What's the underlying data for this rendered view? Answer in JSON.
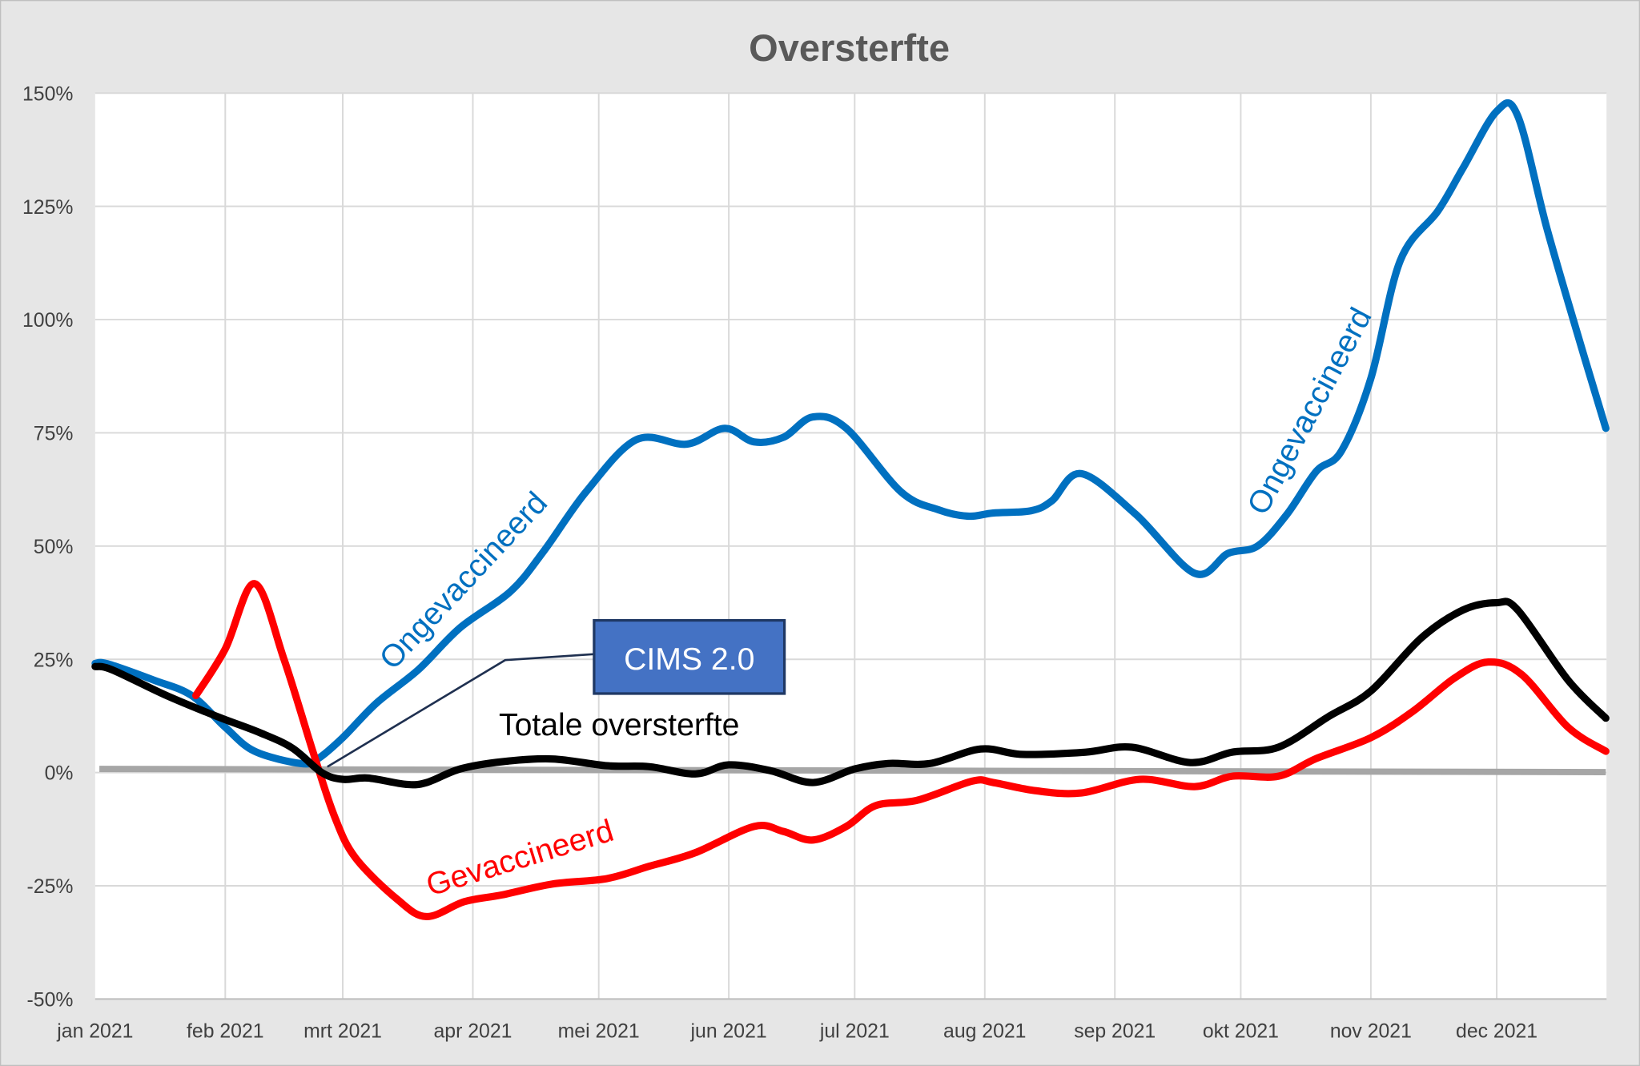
{
  "chart_data": {
    "type": "line",
    "title": "Oversterfte",
    "xlabel": "",
    "ylabel": "",
    "ylim": [
      -50,
      150
    ],
    "xlim": [
      "2021-01-01",
      "2021-12-27"
    ],
    "y_ticks": [
      "150%",
      "125%",
      "100%",
      "75%",
      "50%",
      "25%",
      "0%",
      "-25%",
      "-50%"
    ],
    "y_tick_values": [
      150,
      125,
      100,
      75,
      50,
      25,
      0,
      -25,
      -50
    ],
    "x_ticks": [
      "jan 2021",
      "feb 2021",
      "mrt 2021",
      "apr 2021",
      "mei 2021",
      "jun 2021",
      "jul 2021",
      "aug 2021",
      "sep 2021",
      "okt 2021",
      "nov 2021",
      "dec 2021"
    ],
    "x_tick_dates": [
      "2021-01-01",
      "2021-02-01",
      "2021-03-01",
      "2021-04-01",
      "2021-05-01",
      "2021-06-01",
      "2021-07-01",
      "2021-08-01",
      "2021-09-01",
      "2021-10-01",
      "2021-11-01",
      "2021-12-01"
    ],
    "grid": true,
    "legend": "none",
    "series": [
      {
        "name": "Ongevaccineerd",
        "color": "#0070c0",
        "x": [
          "2021-01-01",
          "2021-01-04",
          "2021-01-15",
          "2021-01-24",
          "2021-02-01",
          "2021-02-08",
          "2021-02-19",
          "2021-02-23",
          "2021-03-01",
          "2021-03-09",
          "2021-03-19",
          "2021-03-29",
          "2021-04-10",
          "2021-04-18",
          "2021-04-28",
          "2021-05-10",
          "2021-05-22",
          "2021-05-31",
          "2021-06-07",
          "2021-06-14",
          "2021-06-21",
          "2021-06-29",
          "2021-07-12",
          "2021-07-21",
          "2021-07-28",
          "2021-08-03",
          "2021-08-12",
          "2021-08-17",
          "2021-08-24",
          "2021-09-06",
          "2021-09-20",
          "2021-09-28",
          "2021-10-05",
          "2021-10-12",
          "2021-10-19",
          "2021-10-25",
          "2021-11-01",
          "2021-11-08",
          "2021-11-17",
          "2021-11-23",
          "2021-12-01",
          "2021-12-06",
          "2021-12-13",
          "2021-12-21",
          "2021-12-27"
        ],
        "y": [
          24.1,
          24,
          20.4,
          17,
          10,
          4.7,
          2,
          3,
          7.7,
          15.3,
          22.7,
          32,
          40,
          49,
          62,
          73.5,
          72.5,
          76,
          73,
          74,
          78.5,
          76,
          62,
          58,
          56.6,
          57.3,
          57.8,
          60,
          66,
          57,
          44,
          48.4,
          50,
          57,
          66.5,
          71,
          87,
          113,
          124,
          133.5,
          146,
          145,
          120,
          94.5,
          76
        ]
      },
      {
        "name": "Totale oversterfte",
        "color": "#000000",
        "x": [
          "2021-01-01",
          "2021-01-05",
          "2021-01-18",
          "2021-01-30",
          "2021-02-09",
          "2021-02-17",
          "2021-02-24",
          "2021-03-01",
          "2021-03-07",
          "2021-03-16",
          "2021-03-21",
          "2021-03-29",
          "2021-04-08",
          "2021-04-20",
          "2021-05-03",
          "2021-05-13",
          "2021-05-24",
          "2021-06-01",
          "2021-06-11",
          "2021-06-21",
          "2021-07-01",
          "2021-07-09",
          "2021-07-19",
          "2021-07-31",
          "2021-08-10",
          "2021-08-25",
          "2021-09-05",
          "2021-09-19",
          "2021-09-29",
          "2021-10-10",
          "2021-10-22",
          "2021-11-01",
          "2021-11-13",
          "2021-11-23",
          "2021-12-01",
          "2021-12-06",
          "2021-12-18",
          "2021-12-27"
        ],
        "y": [
          23.4,
          22.7,
          17,
          12.4,
          8.9,
          5.4,
          0,
          -1.5,
          -1.2,
          -2.6,
          -2.2,
          0.8,
          2.4,
          3,
          1.5,
          1.3,
          -0.3,
          1.7,
          0.4,
          -2.2,
          0.8,
          2,
          2,
          5.2,
          4,
          4.5,
          5.6,
          2.2,
          4.5,
          5.6,
          12.4,
          18,
          29.7,
          35.9,
          37.5,
          35.9,
          20.4,
          12
        ]
      },
      {
        "name": "Gevaccineerd",
        "color": "#ff0000",
        "x": [
          "2021-01-25",
          "2021-02-01",
          "2021-02-08",
          "2021-02-15",
          "2021-02-22",
          "2021-02-27",
          "2021-03-04",
          "2021-03-14",
          "2021-03-21",
          "2021-03-30",
          "2021-04-08",
          "2021-04-20",
          "2021-05-03",
          "2021-05-13",
          "2021-05-24",
          "2021-06-07",
          "2021-06-14",
          "2021-06-21",
          "2021-06-29",
          "2021-07-06",
          "2021-07-16",
          "2021-07-29",
          "2021-08-03",
          "2021-08-13",
          "2021-08-24",
          "2021-09-07",
          "2021-09-20",
          "2021-09-29",
          "2021-10-10",
          "2021-10-19",
          "2021-11-01",
          "2021-11-11",
          "2021-11-21",
          "2021-11-29",
          "2021-12-07",
          "2021-12-18",
          "2021-12-27"
        ],
        "y": [
          17,
          27.3,
          41.7,
          25,
          4.3,
          -9.6,
          -18.8,
          -28,
          -31.8,
          -28.5,
          -27,
          -24.6,
          -23.4,
          -20.7,
          -17.7,
          -11.9,
          -13,
          -14.9,
          -11.9,
          -7.3,
          -6.1,
          -1.9,
          -2.2,
          -4,
          -4.5,
          -1.5,
          -3.1,
          -0.8,
          -0.8,
          3.1,
          7.7,
          13.5,
          20.9,
          24.4,
          21.6,
          10,
          4.7
        ]
      },
      {
        "color": "#a6a6a6",
        "x": [
          "2021-01-02",
          "2021-12-27"
        ],
        "y": [
          0.8,
          0.1
        ]
      }
    ],
    "annotations": {
      "ongevaccineerd_1": "Ongevaccineerd",
      "ongevaccineerd_2": "Ongevaccineerd",
      "gevaccineerd": "Gevaccineerd",
      "totale": "Totale oversterfte",
      "cims": "CIMS 2.0",
      "cims_color": "#4472c4"
    }
  }
}
